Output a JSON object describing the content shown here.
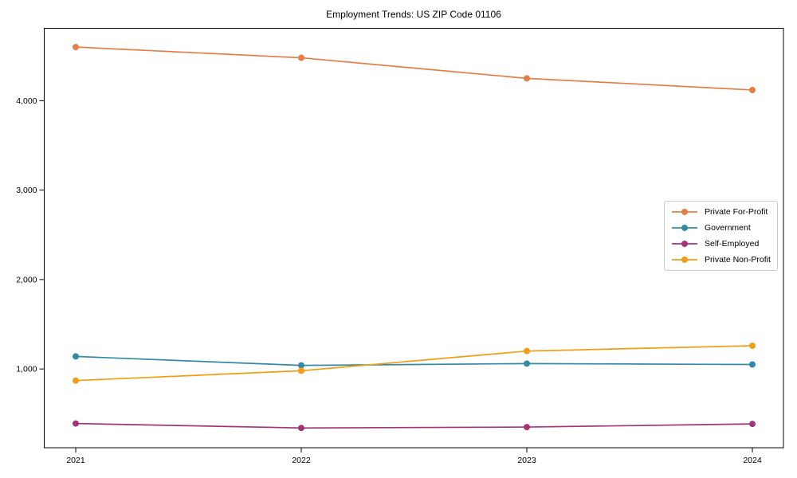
{
  "chart_data": {
    "type": "line",
    "title": "Employment Trends: US ZIP Code 01106",
    "x": [
      "2021",
      "2022",
      "2023",
      "2024"
    ],
    "series": [
      {
        "name": "Private For-Profit",
        "color": "#E57E46",
        "values": [
          4600,
          4480,
          4250,
          4120
        ]
      },
      {
        "name": "Government",
        "color": "#3389A6",
        "values": [
          1140,
          1040,
          1060,
          1050
        ]
      },
      {
        "name": "Self-Employed",
        "color": "#A23579",
        "values": [
          390,
          340,
          350,
          385
        ]
      },
      {
        "name": "Private Non-Profit",
        "color": "#F19D15",
        "values": [
          870,
          980,
          1200,
          1260
        ]
      }
    ],
    "yticks": [
      {
        "value": 1000,
        "label": "1,000"
      },
      {
        "value": 2000,
        "label": "2,000"
      },
      {
        "value": 3000,
        "label": "3,000"
      },
      {
        "value": 4000,
        "label": "4,000"
      }
    ],
    "ylim": [
      119,
      4810
    ],
    "xlabel": "",
    "ylabel": "",
    "grid": false,
    "legend_position": "middle-right",
    "frame_color": "#000000",
    "tick_label_color": "#000000"
  }
}
